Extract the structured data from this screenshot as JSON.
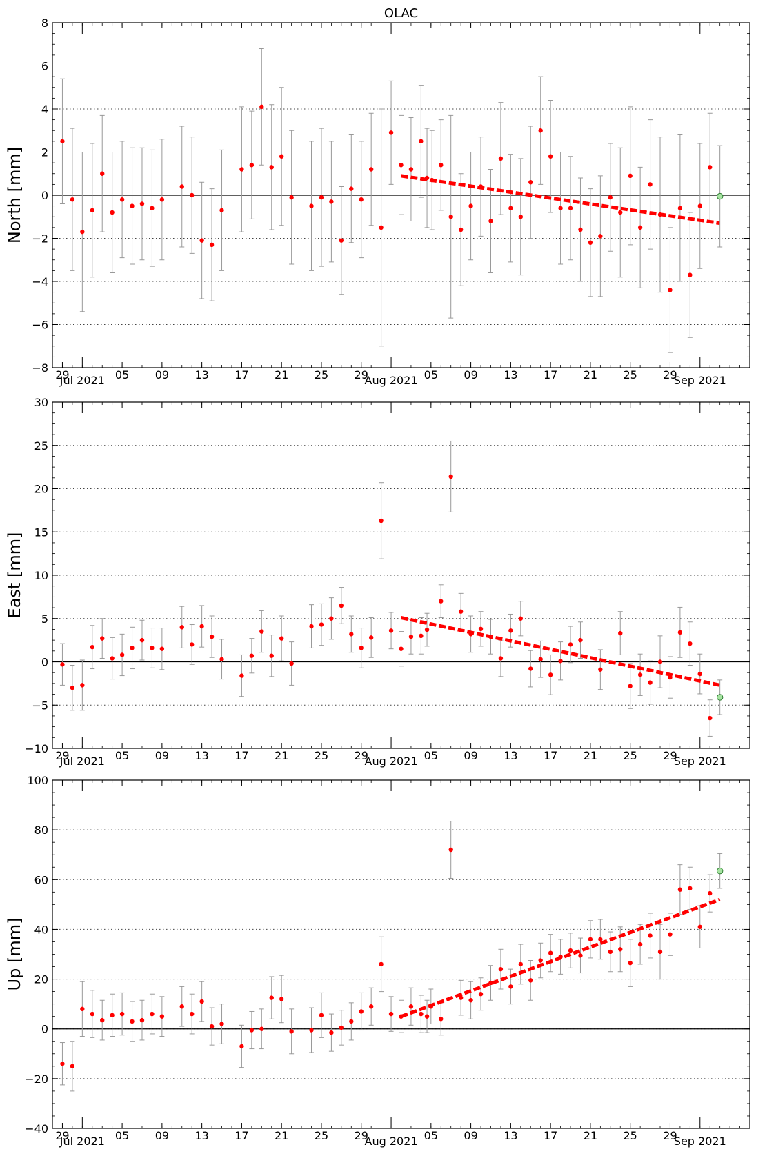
{
  "title": "OLAC",
  "x_tick_labels": [
    "29",
    "Jul 2021",
    "05",
    "09",
    "13",
    "17",
    "21",
    "25",
    "29",
    "Aug 2021",
    "05",
    "09",
    "13",
    "17",
    "21",
    "25",
    "29",
    "Sep 2021"
  ],
  "x_tick_days": [
    0,
    2,
    6,
    10,
    14,
    18,
    22,
    26,
    30,
    33,
    37,
    41,
    45,
    49,
    53,
    57,
    61,
    64
  ],
  "x_note": "x values are day numbers counted from 2021-06-29 (day 0)",
  "colors": {
    "point": "#ff0000",
    "trend": "#ff0000",
    "errorbar": "#999999",
    "last_point": "#a6e3a1",
    "axis": "#000000",
    "grid": "#444444"
  },
  "chart_data": [
    {
      "type": "scatter",
      "name": "north",
      "ylabel": "North [mm]",
      "ylim": [
        -8,
        8
      ],
      "yticks": [
        -8,
        -6,
        -4,
        -2,
        0,
        2,
        4,
        6,
        8
      ],
      "xlim": [
        -1,
        69
      ],
      "grid": true,
      "points": [
        {
          "x": 0,
          "y": 2.5,
          "err": 2.9
        },
        {
          "x": 1,
          "y": -0.2,
          "err": 3.3
        },
        {
          "x": 2,
          "y": -1.7,
          "err": 3.7
        },
        {
          "x": 3,
          "y": -0.7,
          "err": 3.1
        },
        {
          "x": 4,
          "y": 1.0,
          "err": 2.7
        },
        {
          "x": 5,
          "y": -0.8,
          "err": 2.8
        },
        {
          "x": 6,
          "y": -0.2,
          "err": 2.7
        },
        {
          "x": 7,
          "y": -0.5,
          "err": 2.7
        },
        {
          "x": 8,
          "y": -0.4,
          "err": 2.6
        },
        {
          "x": 9,
          "y": -0.6,
          "err": 2.7
        },
        {
          "x": 10,
          "y": -0.2,
          "err": 2.8
        },
        {
          "x": 12,
          "y": 0.4,
          "err": 2.8
        },
        {
          "x": 13,
          "y": 0.0,
          "err": 2.7
        },
        {
          "x": 14,
          "y": -2.1,
          "err": 2.7
        },
        {
          "x": 15,
          "y": -2.3,
          "err": 2.6
        },
        {
          "x": 16,
          "y": -0.7,
          "err": 2.8
        },
        {
          "x": 18,
          "y": 1.2,
          "err": 2.9
        },
        {
          "x": 19,
          "y": 1.4,
          "err": 2.5
        },
        {
          "x": 20,
          "y": 4.1,
          "err": 2.7
        },
        {
          "x": 21,
          "y": 1.3,
          "err": 2.9
        },
        {
          "x": 22,
          "y": 1.8,
          "err": 3.2
        },
        {
          "x": 23,
          "y": -0.1,
          "err": 3.1
        },
        {
          "x": 25,
          "y": -0.5,
          "err": 3.0
        },
        {
          "x": 26,
          "y": -0.1,
          "err": 3.2
        },
        {
          "x": 27,
          "y": -0.3,
          "err": 2.8
        },
        {
          "x": 28,
          "y": -2.1,
          "err": 2.5
        },
        {
          "x": 29,
          "y": 0.3,
          "err": 2.5
        },
        {
          "x": 30,
          "y": -0.2,
          "err": 2.7
        },
        {
          "x": 31,
          "y": 1.2,
          "err": 2.6
        },
        {
          "x": 32,
          "y": -1.5,
          "err": 5.5
        },
        {
          "x": 33,
          "y": 2.9,
          "err": 2.4
        },
        {
          "x": 34,
          "y": 1.4,
          "err": 2.3
        },
        {
          "x": 35,
          "y": 1.2,
          "err": 2.4
        },
        {
          "x": 36,
          "y": 2.5,
          "err": 2.6
        },
        {
          "x": 36.6,
          "y": 0.8,
          "err": 2.3
        },
        {
          "x": 37.1,
          "y": 0.7,
          "err": 2.3
        },
        {
          "x": 38,
          "y": 1.4,
          "err": 2.1
        },
        {
          "x": 39,
          "y": -1.0,
          "err": 4.7
        },
        {
          "x": 40,
          "y": -1.6,
          "err": 2.6
        },
        {
          "x": 41,
          "y": -0.5,
          "err": 2.5
        },
        {
          "x": 42,
          "y": 0.4,
          "err": 2.3
        },
        {
          "x": 43,
          "y": -1.2,
          "err": 2.4
        },
        {
          "x": 44,
          "y": 1.7,
          "err": 2.6
        },
        {
          "x": 45,
          "y": -0.6,
          "err": 2.5
        },
        {
          "x": 46,
          "y": -1.0,
          "err": 2.7
        },
        {
          "x": 47,
          "y": 0.6,
          "err": 2.6
        },
        {
          "x": 48,
          "y": 3.0,
          "err": 2.5
        },
        {
          "x": 49,
          "y": 1.8,
          "err": 2.6
        },
        {
          "x": 50,
          "y": -0.6,
          "err": 2.6
        },
        {
          "x": 51,
          "y": -0.6,
          "err": 2.4
        },
        {
          "x": 52,
          "y": -1.6,
          "err": 2.4
        },
        {
          "x": 53,
          "y": -2.2,
          "err": 2.5
        },
        {
          "x": 54,
          "y": -1.9,
          "err": 2.8
        },
        {
          "x": 55,
          "y": -0.1,
          "err": 2.5
        },
        {
          "x": 56,
          "y": -0.8,
          "err": 3.0
        },
        {
          "x": 57,
          "y": 0.9,
          "err": 3.2
        },
        {
          "x": 58,
          "y": -1.5,
          "err": 2.8
        },
        {
          "x": 59,
          "y": 0.5,
          "err": 3.0
        },
        {
          "x": 60,
          "y": -0.9,
          "err": 3.6
        },
        {
          "x": 61,
          "y": -4.4,
          "err": 2.9
        },
        {
          "x": 62,
          "y": -0.6,
          "err": 3.4
        },
        {
          "x": 63,
          "y": -3.7,
          "err": 2.9
        },
        {
          "x": 64,
          "y": -0.5,
          "err": 2.9
        },
        {
          "x": 65,
          "y": 1.3,
          "err": 2.5
        }
      ],
      "last_point": {
        "x": 66,
        "y": -0.05,
        "err": 2.35
      },
      "trend": {
        "x": [
          34,
          66
        ],
        "y": [
          0.9,
          -1.3
        ]
      }
    },
    {
      "type": "scatter",
      "name": "east",
      "ylabel": "East [mm]",
      "ylim": [
        -10,
        30
      ],
      "yticks": [
        -10,
        -5,
        0,
        5,
        10,
        15,
        20,
        25,
        30
      ],
      "xlim": [
        -1,
        69
      ],
      "grid": true,
      "points": [
        {
          "x": 0,
          "y": -0.3,
          "err": 2.4
        },
        {
          "x": 1,
          "y": -3.0,
          "err": 2.6
        },
        {
          "x": 2,
          "y": -2.7,
          "err": 2.9
        },
        {
          "x": 3,
          "y": 1.7,
          "err": 2.5
        },
        {
          "x": 4,
          "y": 2.7,
          "err": 2.3
        },
        {
          "x": 5,
          "y": 0.4,
          "err": 2.4
        },
        {
          "x": 6,
          "y": 0.8,
          "err": 2.4
        },
        {
          "x": 7,
          "y": 1.6,
          "err": 2.4
        },
        {
          "x": 8,
          "y": 2.5,
          "err": 2.3
        },
        {
          "x": 9,
          "y": 1.6,
          "err": 2.3
        },
        {
          "x": 10,
          "y": 1.5,
          "err": 2.4
        },
        {
          "x": 12,
          "y": 4.0,
          "err": 2.4
        },
        {
          "x": 13,
          "y": 2.0,
          "err": 2.3
        },
        {
          "x": 14,
          "y": 4.1,
          "err": 2.4
        },
        {
          "x": 15,
          "y": 2.9,
          "err": 2.4
        },
        {
          "x": 16,
          "y": 0.3,
          "err": 2.3
        },
        {
          "x": 18,
          "y": -1.6,
          "err": 2.4
        },
        {
          "x": 19,
          "y": 0.7,
          "err": 2.0
        },
        {
          "x": 20,
          "y": 3.5,
          "err": 2.4
        },
        {
          "x": 21,
          "y": 0.7,
          "err": 2.4
        },
        {
          "x": 22,
          "y": 2.7,
          "err": 2.6
        },
        {
          "x": 23,
          "y": -0.2,
          "err": 2.5
        },
        {
          "x": 25,
          "y": 4.1,
          "err": 2.5
        },
        {
          "x": 26,
          "y": 4.3,
          "err": 2.4
        },
        {
          "x": 27,
          "y": 5.0,
          "err": 2.4
        },
        {
          "x": 28,
          "y": 6.5,
          "err": 2.1
        },
        {
          "x": 29,
          "y": 3.2,
          "err": 2.1
        },
        {
          "x": 30,
          "y": 1.6,
          "err": 2.3
        },
        {
          "x": 31,
          "y": 2.8,
          "err": 2.3
        },
        {
          "x": 32,
          "y": 16.3,
          "err": 4.4
        },
        {
          "x": 33,
          "y": 3.6,
          "err": 2.1
        },
        {
          "x": 34,
          "y": 1.5,
          "err": 2.0
        },
        {
          "x": 35,
          "y": 2.9,
          "err": 2.0
        },
        {
          "x": 36,
          "y": 3.0,
          "err": 2.1
        },
        {
          "x": 36.6,
          "y": 3.7,
          "err": 1.9
        },
        {
          "x": 38,
          "y": 7.0,
          "err": 1.9
        },
        {
          "x": 39,
          "y": 21.4,
          "err": 4.1
        },
        {
          "x": 40,
          "y": 5.8,
          "err": 2.1
        },
        {
          "x": 41,
          "y": 3.2,
          "err": 2.1
        },
        {
          "x": 42,
          "y": 3.8,
          "err": 2.0
        },
        {
          "x": 43,
          "y": 2.9,
          "err": 2.0
        },
        {
          "x": 44,
          "y": 0.4,
          "err": 2.1
        },
        {
          "x": 45,
          "y": 3.6,
          "err": 1.9
        },
        {
          "x": 46,
          "y": 5.0,
          "err": 2.0
        },
        {
          "x": 47,
          "y": -0.8,
          "err": 2.1
        },
        {
          "x": 48,
          "y": 0.3,
          "err": 2.1
        },
        {
          "x": 49,
          "y": -1.5,
          "err": 2.3
        },
        {
          "x": 50,
          "y": 0.1,
          "err": 2.2
        },
        {
          "x": 51,
          "y": 2.0,
          "err": 2.1
        },
        {
          "x": 52,
          "y": 2.5,
          "err": 2.1
        },
        {
          "x": 54,
          "y": -0.9,
          "err": 2.3
        },
        {
          "x": 56,
          "y": 3.3,
          "err": 2.5
        },
        {
          "x": 57,
          "y": -2.8,
          "err": 2.6
        },
        {
          "x": 58,
          "y": -1.5,
          "err": 2.4
        },
        {
          "x": 59,
          "y": -2.4,
          "err": 2.5
        },
        {
          "x": 60,
          "y": 0.0,
          "err": 3.0
        },
        {
          "x": 61,
          "y": -1.8,
          "err": 2.4
        },
        {
          "x": 62,
          "y": 3.4,
          "err": 2.9
        },
        {
          "x": 63,
          "y": 2.1,
          "err": 2.5
        },
        {
          "x": 64,
          "y": -1.4,
          "err": 2.3
        },
        {
          "x": 65,
          "y": -6.5,
          "err": 2.1
        }
      ],
      "last_point": {
        "x": 66,
        "y": -4.1,
        "err": 2.0
      },
      "trend": {
        "x": [
          34,
          66
        ],
        "y": [
          5.1,
          -2.7
        ]
      }
    },
    {
      "type": "scatter",
      "name": "up",
      "ylabel": "Up [mm]",
      "ylim": [
        -40,
        100
      ],
      "yticks": [
        -40,
        -20,
        0,
        20,
        40,
        60,
        80,
        100
      ],
      "xlim": [
        -1,
        69
      ],
      "grid": true,
      "points": [
        {
          "x": 0,
          "y": -14,
          "err": 8.5
        },
        {
          "x": 1,
          "y": -15,
          "err": 10
        },
        {
          "x": 2,
          "y": 8,
          "err": 11
        },
        {
          "x": 3,
          "y": 6,
          "err": 9.5
        },
        {
          "x": 4,
          "y": 3.5,
          "err": 8
        },
        {
          "x": 5,
          "y": 5.5,
          "err": 8.5
        },
        {
          "x": 6,
          "y": 6,
          "err": 8.5
        },
        {
          "x": 7,
          "y": 3,
          "err": 8
        },
        {
          "x": 8,
          "y": 3.5,
          "err": 8
        },
        {
          "x": 9,
          "y": 6,
          "err": 8
        },
        {
          "x": 10,
          "y": 5,
          "err": 8
        },
        {
          "x": 12,
          "y": 9,
          "err": 8
        },
        {
          "x": 13,
          "y": 6,
          "err": 8
        },
        {
          "x": 14,
          "y": 11,
          "err": 8
        },
        {
          "x": 15,
          "y": 1,
          "err": 7.5
        },
        {
          "x": 16,
          "y": 2,
          "err": 8
        },
        {
          "x": 18,
          "y": -7,
          "err": 8.5
        },
        {
          "x": 19,
          "y": -0.5,
          "err": 7.5
        },
        {
          "x": 20,
          "y": 0,
          "err": 8
        },
        {
          "x": 21,
          "y": 12.5,
          "err": 8.5
        },
        {
          "x": 22,
          "y": 12,
          "err": 9.5
        },
        {
          "x": 23,
          "y": -1,
          "err": 9
        },
        {
          "x": 25,
          "y": -0.5,
          "err": 9
        },
        {
          "x": 26,
          "y": 5.5,
          "err": 9
        },
        {
          "x": 27,
          "y": -1.5,
          "err": 7.5
        },
        {
          "x": 28,
          "y": 0.5,
          "err": 7
        },
        {
          "x": 29,
          "y": 3,
          "err": 7.5
        },
        {
          "x": 30,
          "y": 7,
          "err": 7.5
        },
        {
          "x": 31,
          "y": 9,
          "err": 7.5
        },
        {
          "x": 32,
          "y": 26,
          "err": 11
        },
        {
          "x": 33,
          "y": 6,
          "err": 7
        },
        {
          "x": 34,
          "y": 5,
          "err": 6.5
        },
        {
          "x": 35,
          "y": 9,
          "err": 7.5
        },
        {
          "x": 36,
          "y": 6,
          "err": 7.5
        },
        {
          "x": 36.6,
          "y": 5,
          "err": 6.5
        },
        {
          "x": 37,
          "y": 9,
          "err": 7
        },
        {
          "x": 38,
          "y": 4,
          "err": 6.5
        },
        {
          "x": 39,
          "y": 72,
          "err": 11.5
        },
        {
          "x": 40,
          "y": 12.5,
          "err": 7
        },
        {
          "x": 41,
          "y": 11.5,
          "err": 7.5
        },
        {
          "x": 42,
          "y": 14,
          "err": 6.5
        },
        {
          "x": 43,
          "y": 18.5,
          "err": 7
        },
        {
          "x": 44,
          "y": 24,
          "err": 8
        },
        {
          "x": 45,
          "y": 17,
          "err": 7
        },
        {
          "x": 46,
          "y": 26,
          "err": 8
        },
        {
          "x": 47,
          "y": 19.5,
          "err": 8
        },
        {
          "x": 48,
          "y": 27.5,
          "err": 7
        },
        {
          "x": 49,
          "y": 30.5,
          "err": 7.5
        },
        {
          "x": 50,
          "y": 29,
          "err": 7
        },
        {
          "x": 51,
          "y": 31.5,
          "err": 7
        },
        {
          "x": 52,
          "y": 29.5,
          "err": 7
        },
        {
          "x": 53,
          "y": 36,
          "err": 7.5
        },
        {
          "x": 54,
          "y": 36,
          "err": 8
        },
        {
          "x": 55,
          "y": 31,
          "err": 8
        },
        {
          "x": 56,
          "y": 32,
          "err": 9
        },
        {
          "x": 57,
          "y": 26.5,
          "err": 9.5
        },
        {
          "x": 58,
          "y": 34,
          "err": 8
        },
        {
          "x": 59,
          "y": 37.5,
          "err": 9
        },
        {
          "x": 60,
          "y": 31,
          "err": 11
        },
        {
          "x": 61,
          "y": 38,
          "err": 8.5
        },
        {
          "x": 62,
          "y": 56,
          "err": 10
        },
        {
          "x": 63,
          "y": 56.5,
          "err": 8.5
        },
        {
          "x": 64,
          "y": 41,
          "err": 8.5
        },
        {
          "x": 65,
          "y": 54.5,
          "err": 7.5
        }
      ],
      "last_point": {
        "x": 66,
        "y": 63.5,
        "err": 7
      },
      "trend": {
        "x": [
          34,
          66
        ],
        "y": [
          5,
          52
        ]
      }
    }
  ]
}
